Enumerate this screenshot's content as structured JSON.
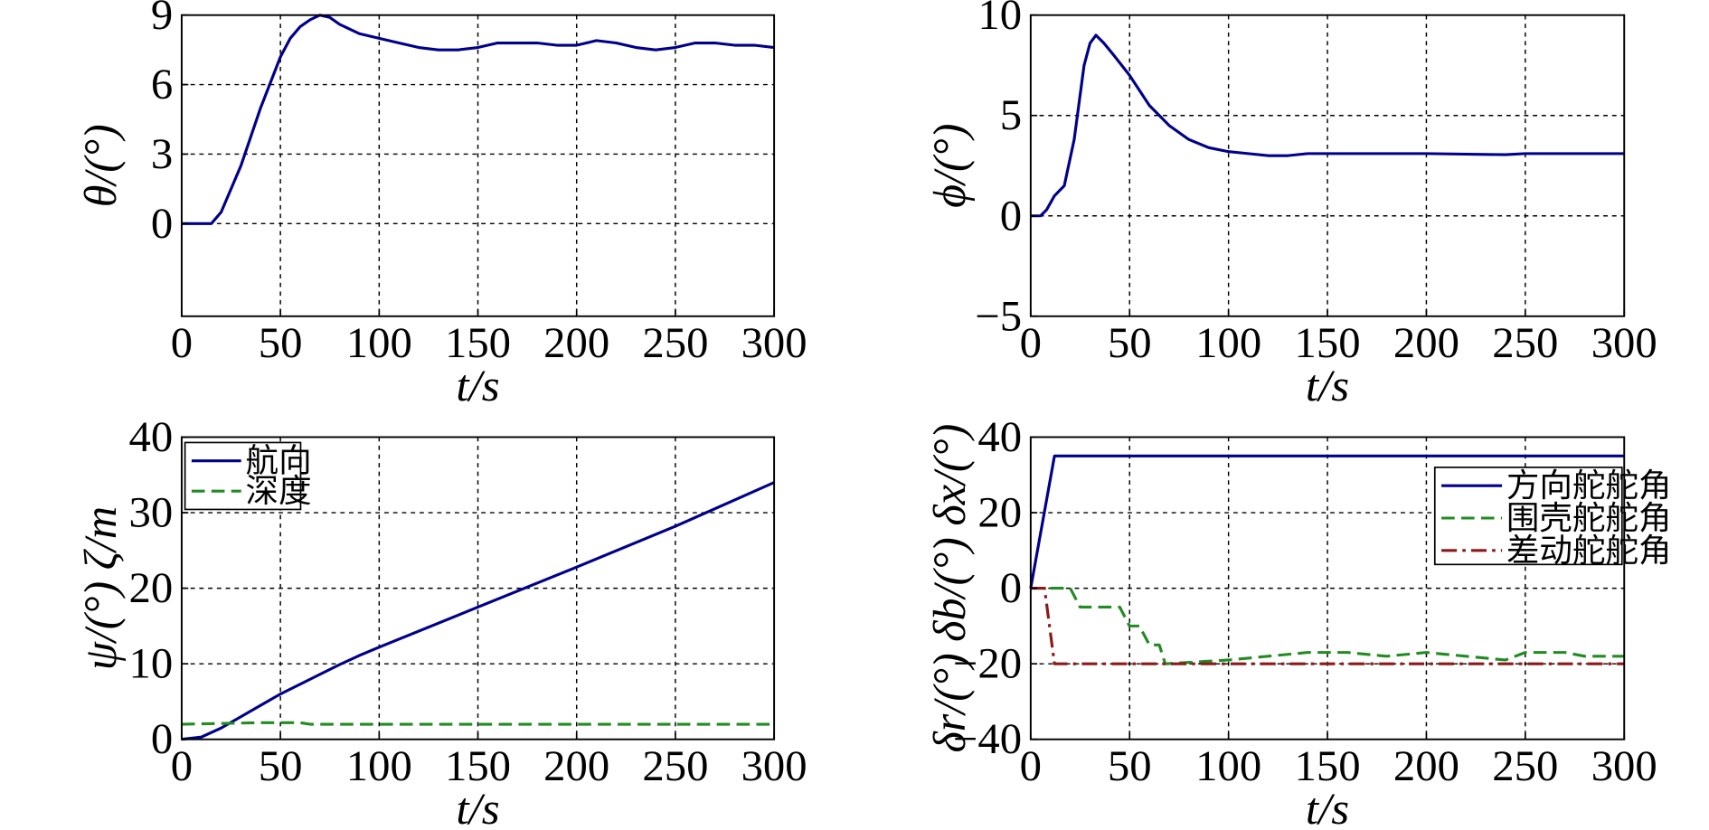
{
  "chart_data": [
    {
      "id": "theta",
      "type": "line",
      "ylabel": "θ/(°)",
      "xlabel": "t/s",
      "xlim": [
        0,
        300
      ],
      "ylim": [
        -4,
        9
      ],
      "xticks": [
        0,
        50,
        100,
        150,
        200,
        250,
        300
      ],
      "yticks": [
        0,
        3,
        6,
        9
      ],
      "xtick_labels": [
        "0",
        "50",
        "100",
        "150",
        "200",
        "250",
        "300"
      ],
      "ytick_labels": [
        "0",
        "3",
        "6",
        "9"
      ],
      "grid": true,
      "legend": null,
      "series": [
        {
          "name": "θ",
          "color": "#00008B",
          "dash": "solid",
          "points": [
            [
              0,
              0
            ],
            [
              15,
              0
            ],
            [
              20,
              0.5
            ],
            [
              30,
              2.5
            ],
            [
              40,
              5
            ],
            [
              50,
              7.2
            ],
            [
              55,
              8.0
            ],
            [
              60,
              8.5
            ],
            [
              65,
              8.8
            ],
            [
              70,
              9.0
            ],
            [
              75,
              8.9
            ],
            [
              80,
              8.6
            ],
            [
              90,
              8.2
            ],
            [
              100,
              8.0
            ],
            [
              110,
              7.8
            ],
            [
              120,
              7.6
            ],
            [
              130,
              7.5
            ],
            [
              140,
              7.5
            ],
            [
              150,
              7.6
            ],
            [
              160,
              7.8
            ],
            [
              170,
              7.8
            ],
            [
              180,
              7.8
            ],
            [
              190,
              7.7
            ],
            [
              200,
              7.7
            ],
            [
              205,
              7.8
            ],
            [
              210,
              7.9
            ],
            [
              220,
              7.8
            ],
            [
              230,
              7.6
            ],
            [
              240,
              7.5
            ],
            [
              250,
              7.6
            ],
            [
              260,
              7.8
            ],
            [
              270,
              7.8
            ],
            [
              280,
              7.7
            ],
            [
              290,
              7.7
            ],
            [
              300,
              7.6
            ]
          ]
        }
      ]
    },
    {
      "id": "phi",
      "type": "line",
      "ylabel": "ϕ/(°)",
      "xlabel": "t/s",
      "xlim": [
        0,
        300
      ],
      "ylim": [
        -5,
        10
      ],
      "xticks": [
        0,
        50,
        100,
        150,
        200,
        250,
        300
      ],
      "yticks": [
        -5,
        0,
        5,
        10
      ],
      "xtick_labels": [
        "0",
        "50",
        "100",
        "150",
        "200",
        "250",
        "300"
      ],
      "ytick_labels": [
        "−5",
        "0",
        "5",
        "10"
      ],
      "grid": true,
      "legend": null,
      "series": [
        {
          "name": "ϕ",
          "color": "#00008B",
          "dash": "solid",
          "points": [
            [
              0,
              0
            ],
            [
              5,
              0
            ],
            [
              8,
              0.3
            ],
            [
              12,
              1.0
            ],
            [
              17,
              1.5
            ],
            [
              22,
              3.8
            ],
            [
              27,
              7.5
            ],
            [
              30,
              8.6
            ],
            [
              33,
              9.0
            ],
            [
              37,
              8.6
            ],
            [
              42,
              8.0
            ],
            [
              50,
              7.0
            ],
            [
              60,
              5.5
            ],
            [
              70,
              4.5
            ],
            [
              80,
              3.8
            ],
            [
              90,
              3.4
            ],
            [
              100,
              3.2
            ],
            [
              110,
              3.1
            ],
            [
              120,
              3.0
            ],
            [
              130,
              3.0
            ],
            [
              140,
              3.1
            ],
            [
              150,
              3.1
            ],
            [
              170,
              3.1
            ],
            [
              200,
              3.1
            ],
            [
              240,
              3.05
            ],
            [
              250,
              3.1
            ],
            [
              270,
              3.1
            ],
            [
              300,
              3.1
            ]
          ]
        }
      ]
    },
    {
      "id": "psi_zeta",
      "type": "line",
      "ylabel": "ψ/(°) ζ/m",
      "xlabel": "t/s",
      "xlim": [
        0,
        300
      ],
      "ylim": [
        0,
        40
      ],
      "xticks": [
        0,
        50,
        100,
        150,
        200,
        250,
        300
      ],
      "yticks": [
        0,
        10,
        20,
        30,
        40
      ],
      "xtick_labels": [
        "0",
        "50",
        "100",
        "150",
        "200",
        "250",
        "300"
      ],
      "ytick_labels": [
        "0",
        "10",
        "20",
        "30",
        "40"
      ],
      "grid": true,
      "legend": "top-left",
      "series": [
        {
          "name": "航向",
          "color": "#00008B",
          "dash": "solid",
          "points": [
            [
              0,
              0
            ],
            [
              10,
              0.3
            ],
            [
              20,
              1.5
            ],
            [
              30,
              3
            ],
            [
              40,
              4.5
            ],
            [
              50,
              6
            ],
            [
              60,
              7.3
            ],
            [
              70,
              8.6
            ],
            [
              80,
              9.9
            ],
            [
              90,
              11.1
            ],
            [
              100,
              12.2
            ],
            [
              150,
              17.5
            ],
            [
              200,
              22.8
            ],
            [
              250,
              28.2
            ],
            [
              300,
              34
            ]
          ]
        },
        {
          "name": "深度",
          "color": "#228B22",
          "dash": "dashed",
          "points": [
            [
              0,
              2.0
            ],
            [
              20,
              2.1
            ],
            [
              40,
              2.2
            ],
            [
              60,
              2.2
            ],
            [
              65,
              2.0
            ],
            [
              100,
              2.0
            ],
            [
              150,
              2.0
            ],
            [
              200,
              2.0
            ],
            [
              250,
              2.0
            ],
            [
              300,
              2.0
            ]
          ]
        }
      ]
    },
    {
      "id": "deltas",
      "type": "line",
      "ylabel": "δr/(°) δb/(°) δx/(°)",
      "xlabel": "t/s",
      "xlim": [
        0,
        300
      ],
      "ylim": [
        -40,
        40
      ],
      "xticks": [
        0,
        50,
        100,
        150,
        200,
        250,
        300
      ],
      "yticks": [
        -40,
        -20,
        0,
        20,
        40
      ],
      "xtick_labels": [
        "0",
        "50",
        "100",
        "150",
        "200",
        "250",
        "300"
      ],
      "ytick_labels": [
        "−40",
        "−20",
        "0",
        "20",
        "40"
      ],
      "grid": true,
      "legend": "right",
      "series": [
        {
          "name": "方向舵舵角",
          "color": "#00008B",
          "dash": "solid",
          "points": [
            [
              0,
              0
            ],
            [
              12,
              35
            ],
            [
              300,
              35
            ]
          ]
        },
        {
          "name": "围壳舵舵角",
          "color": "#228B22",
          "dash": "dashed",
          "points": [
            [
              0,
              0
            ],
            [
              20,
              0
            ],
            [
              25,
              -5
            ],
            [
              45,
              -5
            ],
            [
              50,
              -10
            ],
            [
              55,
              -10
            ],
            [
              60,
              -15
            ],
            [
              65,
              -15
            ],
            [
              68,
              -20
            ],
            [
              100,
              -19
            ],
            [
              120,
              -18
            ],
            [
              140,
              -17
            ],
            [
              160,
              -17
            ],
            [
              180,
              -18
            ],
            [
              200,
              -17
            ],
            [
              220,
              -18
            ],
            [
              240,
              -19
            ],
            [
              250,
              -17
            ],
            [
              270,
              -17
            ],
            [
              280,
              -18
            ],
            [
              300,
              -18
            ]
          ]
        },
        {
          "name": "差动舵舵角",
          "color": "#8B1A1A",
          "dash": "dashdot",
          "points": [
            [
              0,
              0
            ],
            [
              7,
              0
            ],
            [
              12,
              -20
            ],
            [
              300,
              -20
            ]
          ]
        }
      ]
    }
  ]
}
